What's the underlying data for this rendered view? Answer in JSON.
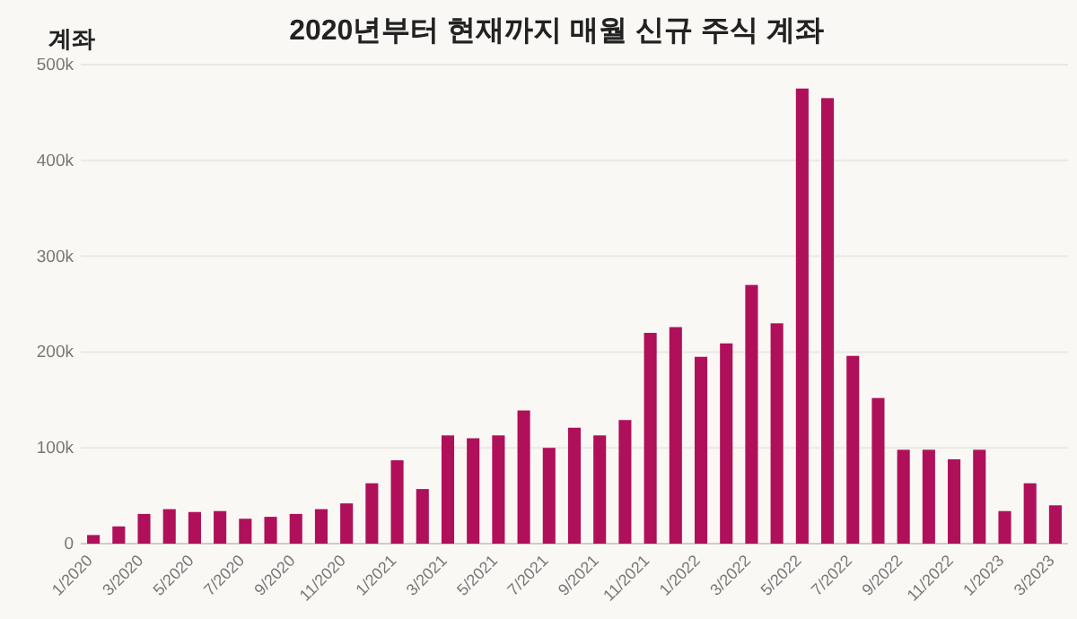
{
  "chart_data": {
    "type": "bar",
    "title": "2020년부터 현재까지 매월 신규 주식 계좌",
    "ylabel": "계좌",
    "categories": [
      "1/2020",
      null,
      "3/2020",
      null,
      "5/2020",
      null,
      "7/2020",
      null,
      "9/2020",
      null,
      "11/2020",
      null,
      "1/2021",
      null,
      "3/2021",
      null,
      "5/2021",
      null,
      "7/2021",
      null,
      "9/2021",
      null,
      "11/2021",
      null,
      "1/2022",
      null,
      "3/2022",
      null,
      "5/2022",
      null,
      "7/2022",
      null,
      "9/2022",
      null,
      "11/2022",
      null,
      "1/2023",
      null,
      "3/2023"
    ],
    "values": [
      9000,
      18000,
      31000,
      36000,
      33000,
      34000,
      26000,
      28000,
      31000,
      36000,
      42000,
      63000,
      87000,
      57000,
      113000,
      110000,
      113000,
      139000,
      100000,
      121000,
      113000,
      129000,
      220000,
      226000,
      195000,
      209000,
      270000,
      230000,
      475000,
      465000,
      196000,
      152000,
      98000,
      98000,
      88000,
      98000,
      34000,
      63000,
      40000
    ],
    "color": "#b0105a",
    "ylim": [
      0,
      500000
    ],
    "yticks": [
      {
        "value": 0,
        "label": "0"
      },
      {
        "value": 100000,
        "label": "100k"
      },
      {
        "value": 200000,
        "label": "200k"
      },
      {
        "value": 300000,
        "label": "300k"
      },
      {
        "value": 400000,
        "label": "400k"
      },
      {
        "value": 500000,
        "label": "500k"
      }
    ],
    "grid": "y"
  }
}
